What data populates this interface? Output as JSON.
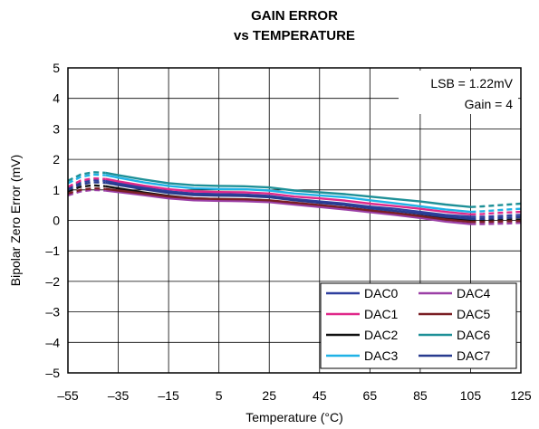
{
  "chart_data": {
    "type": "line",
    "title_line1": "GAIN ERROR",
    "title_line2": "vs TEMPERATURE",
    "xlabel": "Temperature (°C)",
    "ylabel": "Bipolar Zero Error (mV)",
    "xlim": [
      -55,
      125
    ],
    "ylim": [
      -5,
      5
    ],
    "xticks": [
      -55,
      -35,
      -15,
      5,
      25,
      45,
      65,
      85,
      105,
      125
    ],
    "yticks": [
      -5,
      -4,
      -3,
      -2,
      -1,
      0,
      1,
      2,
      3,
      4,
      5
    ],
    "grid": true,
    "annotations": [
      "LSB = 1.22mV",
      "Gain = 4"
    ],
    "legend_position": "bottom-right",
    "solid_range": [
      -40,
      105
    ],
    "x": [
      -55,
      -50,
      -45,
      -40,
      -35,
      -25,
      -15,
      -5,
      5,
      15,
      25,
      35,
      45,
      55,
      65,
      75,
      85,
      95,
      105,
      110,
      115,
      120,
      125
    ],
    "series": [
      {
        "name": "DAC0",
        "color": "#2e3f9e",
        "values": [
          1.05,
          1.25,
          1.32,
          1.3,
          1.22,
          1.08,
          0.95,
          0.88,
          0.86,
          0.85,
          0.8,
          0.7,
          0.62,
          0.55,
          0.45,
          0.38,
          0.28,
          0.18,
          0.12,
          0.12,
          0.14,
          0.16,
          0.18
        ]
      },
      {
        "name": "DAC1",
        "color": "#e0298a",
        "values": [
          1.1,
          1.3,
          1.38,
          1.36,
          1.28,
          1.14,
          1.02,
          0.95,
          0.93,
          0.92,
          0.88,
          0.78,
          0.72,
          0.65,
          0.55,
          0.47,
          0.38,
          0.28,
          0.2,
          0.21,
          0.24,
          0.26,
          0.28
        ]
      },
      {
        "name": "DAC2",
        "color": "#111111",
        "values": [
          0.95,
          1.1,
          1.15,
          1.12,
          1.05,
          0.92,
          0.8,
          0.72,
          0.7,
          0.69,
          0.65,
          0.55,
          0.48,
          0.42,
          0.33,
          0.24,
          0.15,
          0.06,
          0.0,
          0.0,
          0.01,
          0.02,
          0.03
        ]
      },
      {
        "name": "DAC3",
        "color": "#1fb2e6",
        "values": [
          1.22,
          1.42,
          1.5,
          1.48,
          1.4,
          1.25,
          1.13,
          1.05,
          1.03,
          1.02,
          0.98,
          0.88,
          0.82,
          0.76,
          0.66,
          0.56,
          0.46,
          0.36,
          0.28,
          0.3,
          0.33,
          0.36,
          0.38
        ]
      },
      {
        "name": "DAC4",
        "color": "#9b3fa6",
        "values": [
          0.82,
          0.95,
          1.0,
          0.98,
          0.93,
          0.83,
          0.72,
          0.66,
          0.64,
          0.63,
          0.6,
          0.52,
          0.44,
          0.36,
          0.27,
          0.18,
          0.08,
          -0.04,
          -0.12,
          -0.12,
          -0.11,
          -0.1,
          -0.08
        ]
      },
      {
        "name": "DAC5",
        "color": "#7a1f24",
        "values": [
          0.88,
          1.0,
          1.05,
          1.03,
          0.98,
          0.88,
          0.78,
          0.72,
          0.7,
          0.69,
          0.66,
          0.58,
          0.5,
          0.42,
          0.33,
          0.24,
          0.14,
          0.03,
          -0.05,
          -0.05,
          -0.04,
          -0.03,
          -0.02
        ]
      },
      {
        "name": "DAC6",
        "color": "#1e9097",
        "values": [
          1.3,
          1.5,
          1.58,
          1.56,
          1.48,
          1.34,
          1.22,
          1.15,
          1.13,
          1.12,
          1.08,
          0.98,
          0.92,
          0.86,
          0.78,
          0.7,
          0.62,
          0.52,
          0.44,
          0.46,
          0.49,
          0.52,
          0.55
        ]
      },
      {
        "name": "DAC7",
        "color": "#283b8f",
        "values": [
          1.0,
          1.18,
          1.25,
          1.23,
          1.16,
          1.02,
          0.9,
          0.83,
          0.81,
          0.8,
          0.76,
          0.66,
          0.58,
          0.5,
          0.4,
          0.31,
          0.22,
          0.12,
          0.05,
          0.05,
          0.07,
          0.09,
          0.11
        ]
      }
    ]
  }
}
